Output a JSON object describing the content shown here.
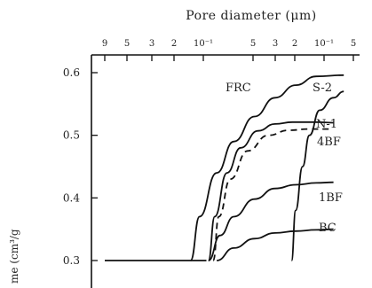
{
  "chart_data": {
    "type": "line",
    "title": "Pore diameter (μm)",
    "ylabel": "me (cm³/g",
    "ylim": [
      0.3,
      0.6
    ],
    "yticks": [
      "0.6",
      "0.5",
      "0.4",
      "0.3"
    ],
    "top_axis_ticks": [
      "9",
      "5",
      "3",
      "2",
      "10⁻¹",
      "5",
      "3",
      "2",
      "10⁻¹",
      "5"
    ],
    "series": [
      {
        "name": "FRC",
        "style": "solid",
        "points": [
          [
            1.37,
            0.3
          ],
          [
            1.5,
            0.37
          ],
          [
            1.75,
            0.44
          ],
          [
            2.0,
            0.49
          ],
          [
            2.3,
            0.53
          ],
          [
            2.6,
            0.56
          ],
          [
            2.9,
            0.58
          ],
          [
            3.2,
            0.594
          ],
          [
            3.6,
            0.596
          ]
        ]
      },
      {
        "name": "S-2",
        "style": "solid",
        "points": [
          [
            2.84,
            0.3
          ],
          [
            2.9,
            0.38
          ],
          [
            3.0,
            0.45
          ],
          [
            3.1,
            0.5
          ],
          [
            3.25,
            0.54
          ],
          [
            3.45,
            0.56
          ],
          [
            3.6,
            0.57
          ]
        ]
      },
      {
        "name": "N-1",
        "style": "solid",
        "points": [
          [
            1.63,
            0.3
          ],
          [
            1.72,
            0.37
          ],
          [
            1.9,
            0.44
          ],
          [
            2.1,
            0.48
          ],
          [
            2.35,
            0.507
          ],
          [
            2.6,
            0.518
          ],
          [
            2.85,
            0.521
          ],
          [
            3.2,
            0.521
          ],
          [
            3.45,
            0.52
          ]
        ]
      },
      {
        "name": "4BF",
        "style": "dashed",
        "points": [
          [
            1.7,
            0.3
          ],
          [
            1.78,
            0.37
          ],
          [
            1.95,
            0.43
          ],
          [
            2.2,
            0.475
          ],
          [
            2.5,
            0.5
          ],
          [
            2.8,
            0.508
          ],
          [
            3.1,
            0.51
          ],
          [
            3.4,
            0.51
          ]
        ]
      },
      {
        "name": "1BF",
        "style": "solid",
        "points": [
          [
            1.63,
            0.3
          ],
          [
            1.8,
            0.34
          ],
          [
            2.0,
            0.37
          ],
          [
            2.3,
            0.398
          ],
          [
            2.6,
            0.415
          ],
          [
            2.9,
            0.421
          ],
          [
            3.2,
            0.424
          ],
          [
            3.45,
            0.425
          ]
        ]
      },
      {
        "name": "BC",
        "style": "solid",
        "points": [
          [
            1.75,
            0.3
          ],
          [
            2.0,
            0.32
          ],
          [
            2.3,
            0.335
          ],
          [
            2.6,
            0.344
          ],
          [
            2.9,
            0.347
          ],
          [
            3.2,
            0.349
          ],
          [
            3.45,
            0.35
          ]
        ]
      }
    ],
    "baseline": [
      [
        0.12,
        0.3
      ],
      [
        1.6,
        0.3
      ]
    ]
  }
}
